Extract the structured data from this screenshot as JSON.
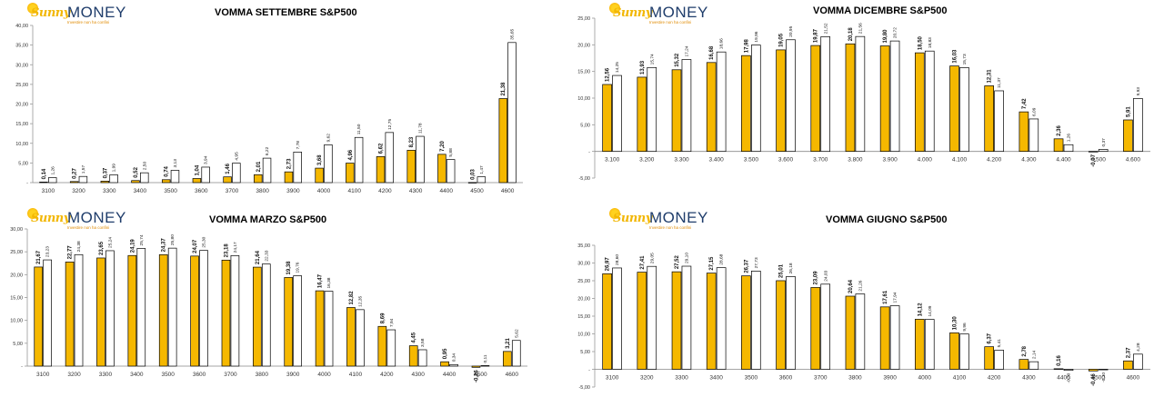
{
  "brand": {
    "sunny": "Sunny",
    "money": "MONEY",
    "tagline": "Investire non ha confini"
  },
  "colors": {
    "bar_primary": "#f5b800",
    "bar_secondary": "#ffffff",
    "bar_stroke": "#000000"
  },
  "chart_data": [
    {
      "type": "bar",
      "title": "VOMMA SETTEMBRE S&P500",
      "categories": [
        "3100",
        "3200",
        "3300",
        "3400",
        "3500",
        "3600",
        "3700",
        "3800",
        "3900",
        "4000",
        "4100",
        "4200",
        "4300",
        "4400",
        "4500",
        "4600"
      ],
      "series": [
        {
          "values": [
            0.14,
            0.27,
            0.37,
            0.52,
            0.74,
            1.04,
            1.46,
            2.01,
            2.73,
            3.68,
            4.96,
            6.62,
            8.23,
            7.2,
            0.03,
            21.38
          ],
          "labels": [
            "0,14",
            "0,27",
            "0,37",
            "0,52",
            "0,74",
            "1,04",
            "1,46",
            "2,01",
            "2,73",
            "3,68",
            "4,96",
            "6,62",
            "8,23",
            "7,20",
            "0,03",
            "21,38"
          ]
        },
        {
          "values": [
            1.26,
            1.57,
            1.99,
            2.5,
            3.13,
            3.94,
            4.95,
            6.22,
            7.78,
            9.62,
            11.5,
            12.75,
            11.78,
            5.88,
            1.47,
            35.65
          ],
          "labels": [
            "1,26",
            "1,57",
            "1,99",
            "2,50",
            "3,13",
            "3,94",
            "4,95",
            "6,22",
            "7,78",
            "9,62",
            "11,50",
            "12,75",
            "11,78",
            "5,88",
            "1,47",
            "35,65"
          ]
        }
      ],
      "ylim": [
        0,
        40
      ],
      "ytick_labels": [
        "-",
        "5,00",
        "10,00",
        "15,00",
        "20,00",
        "25,00",
        "30,00",
        "35,00",
        "40,00"
      ]
    },
    {
      "type": "bar",
      "title": "VOMMA DICEMBRE S&P500",
      "categories": [
        "3.100",
        "3.200",
        "3.300",
        "3.400",
        "3.500",
        "3.600",
        "3.700",
        "3.800",
        "3.900",
        "4.000",
        "4.100",
        "4.200",
        "4.300",
        "4.400",
        "4.500",
        "4.600"
      ],
      "series": [
        {
          "values": [
            12.56,
            13.93,
            15.32,
            16.68,
            17.98,
            19.05,
            19.87,
            20.18,
            19.8,
            18.5,
            16.03,
            12.31,
            7.42,
            2.36,
            -0.07,
            5.91
          ],
          "labels": [
            "12,56",
            "13,93",
            "15,32",
            "16,68",
            "17,98",
            "19,05",
            "19,87",
            "20,18",
            "19,80",
            "18,50",
            "16,03",
            "12,31",
            "7,42",
            "2,36",
            "-0,07",
            "5,91"
          ]
        },
        {
          "values": [
            14.25,
            15.74,
            17.24,
            18.66,
            19.96,
            20.95,
            21.52,
            21.56,
            20.72,
            18.83,
            15.73,
            11.37,
            6.09,
            1.26,
            0.37,
            9.93
          ],
          "labels": [
            "14,25",
            "15,74",
            "17,24",
            "18,66",
            "19,96",
            "20,95",
            "21,52",
            "21,56",
            "20,72",
            "18,83",
            "15,73",
            "11,37",
            "6,09",
            "1,26",
            "0,37",
            "9,93"
          ]
        }
      ],
      "ylim": [
        -5,
        25
      ],
      "ytick_labels": [
        "-5,00",
        "-",
        "5,00",
        "10,00",
        "15,00",
        "20,00",
        "25,00"
      ]
    },
    {
      "type": "bar",
      "title": "VOMMA MARZO S&P500",
      "categories": [
        "3100",
        "3200",
        "3300",
        "3400",
        "3500",
        "3600",
        "3700",
        "3800",
        "3900",
        "4000",
        "4100",
        "4200",
        "4300",
        "4400",
        "4500",
        "4600"
      ],
      "series": [
        {
          "values": [
            21.67,
            22.77,
            23.65,
            24.19,
            24.37,
            24.07,
            23.18,
            21.64,
            19.38,
            16.47,
            12.82,
            8.69,
            4.45,
            0.95,
            -0.26,
            3.21
          ],
          "labels": [
            "21,67",
            "22,77",
            "23,65",
            "24,19",
            "24,37",
            "24,07",
            "23,18",
            "21,64",
            "19,38",
            "16,47",
            "12,82",
            "8,69",
            "4,45",
            "0,95",
            "-0,26",
            "3,21"
          ]
        },
        {
          "values": [
            23.23,
            24.38,
            25.24,
            25.74,
            25.8,
            25.3,
            24.17,
            22.33,
            19.76,
            16.38,
            12.35,
            7.94,
            3.58,
            0.34,
            0.11,
            5.62
          ],
          "labels": [
            "23,23",
            "24,38",
            "25,24",
            "25,74",
            "25,80",
            "25,30",
            "24,17",
            "22,33",
            "19,76",
            "16,38",
            "12,35",
            "7,94",
            "3,58",
            "0,34",
            "0,11",
            "5,62"
          ]
        }
      ],
      "ylim": [
        0,
        30
      ],
      "ytick_labels": [
        "-",
        "5,00",
        "10,00",
        "15,00",
        "20,00",
        "25,00",
        "30,00"
      ]
    },
    {
      "type": "bar",
      "title": "VOMMA GIUGNO S&P500",
      "categories": [
        "3100",
        "3200",
        "3300",
        "3400",
        "3500",
        "3600",
        "3700",
        "3800",
        "3900",
        "4000",
        "4100",
        "4200",
        "4300",
        "4400",
        "4500",
        "4600"
      ],
      "series": [
        {
          "values": [
            26.97,
            27.41,
            27.52,
            27.15,
            26.37,
            25.01,
            23.09,
            20.64,
            17.61,
            14.12,
            10.3,
            6.37,
            2.78,
            0.16,
            -0.46,
            2.37
          ],
          "labels": [
            "26,97",
            "27,41",
            "27,52",
            "27,15",
            "26,37",
            "25,01",
            "23,09",
            "20,64",
            "17,61",
            "14,12",
            "10,30",
            "6,37",
            "2,78",
            "0,16",
            "-0,46",
            "2,37"
          ]
        },
        {
          "values": [
            28.6,
            29.05,
            29.1,
            28.68,
            27.73,
            26.18,
            24.03,
            21.26,
            17.94,
            14.09,
            9.96,
            5.41,
            2.14,
            -0.3,
            -0.1,
            4.28
          ],
          "labels": [
            "28,60",
            "29,05",
            "29,10",
            "28,68",
            "27,73",
            "26,18",
            "24,03",
            "21,26",
            "17,94",
            "14,09",
            "9,96",
            "5,41",
            "2,14",
            "-0,30",
            "-0,10",
            "4,28"
          ]
        }
      ],
      "ylim": [
        -5,
        35
      ],
      "ytick_labels": [
        "-5,00",
        "-",
        "5,00",
        "10,00",
        "15,00",
        "20,00",
        "25,00",
        "30,00",
        "35,00"
      ]
    }
  ]
}
